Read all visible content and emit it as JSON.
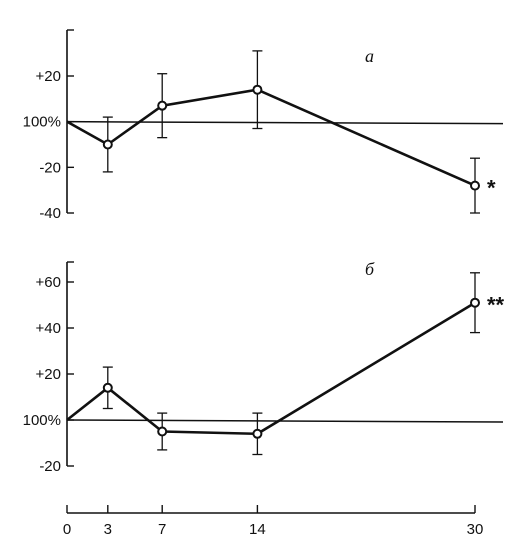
{
  "chart_data": [
    {
      "type": "line",
      "panel_label": "а",
      "x": [
        0,
        3,
        7,
        14,
        30
      ],
      "series": [
        {
          "values": [
            0,
            -10,
            7,
            14,
            -28
          ],
          "errors": [
            0,
            12,
            14,
            17,
            12
          ]
        }
      ],
      "reference_label": "100%",
      "ylim": [
        -40,
        35
      ],
      "yticks": [
        -40,
        -20,
        0,
        20
      ],
      "ytick_labels": [
        "-40",
        "-20",
        "100%",
        "+20"
      ],
      "significance": {
        "x": 30,
        "label": "*"
      }
    },
    {
      "type": "line",
      "panel_label": "б",
      "x": [
        0,
        3,
        7,
        14,
        30
      ],
      "series": [
        {
          "values": [
            0,
            14,
            -5,
            -6,
            51
          ],
          "errors": [
            0,
            9,
            8,
            9,
            13
          ]
        }
      ],
      "reference_label": "100%",
      "ylim": [
        -20,
        68
      ],
      "yticks": [
        -20,
        0,
        20,
        40,
        60
      ],
      "ytick_labels": [
        "-20",
        "100%",
        "+20",
        "+40",
        "+60"
      ],
      "significance": {
        "x": 30,
        "label": "**"
      }
    }
  ],
  "x_axis": {
    "xlim": [
      0,
      30
    ],
    "ticks": [
      0,
      3,
      7,
      14,
      30
    ],
    "tick_labels": [
      "0",
      "3",
      "7",
      "14",
      "30"
    ]
  },
  "colors": {
    "ink": "#111111",
    "marker_fill": "#ffffff"
  }
}
